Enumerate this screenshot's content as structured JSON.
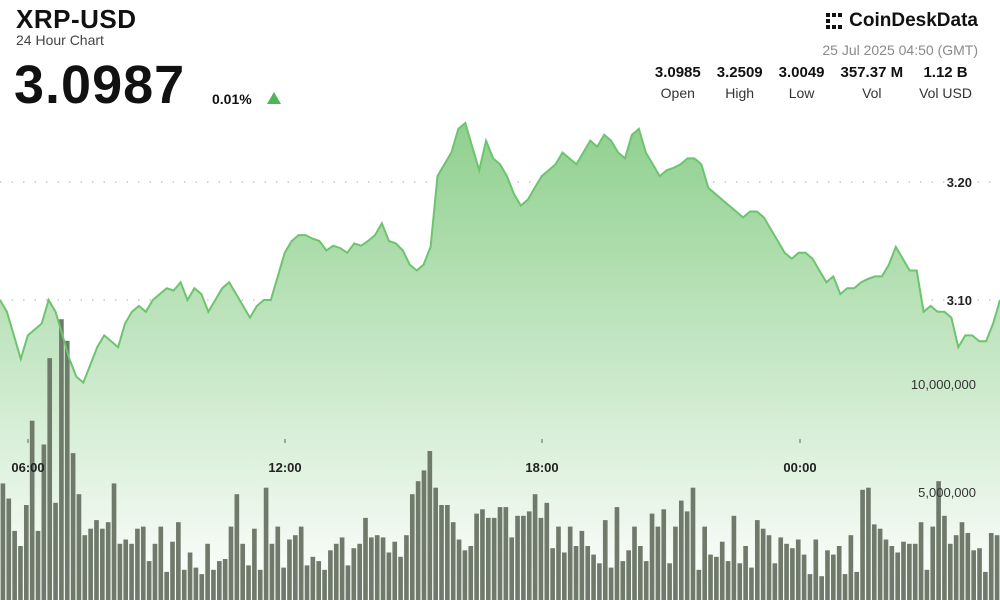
{
  "header": {
    "title": "XRP-USD",
    "subtitle": "24 Hour Chart",
    "price": "3.0987",
    "change": "0.01%",
    "brand": "CoinDeskData",
    "timestamp": "25 Jul 2025 04:50 (GMT)"
  },
  "stats": [
    {
      "value": "3.0985",
      "label": "Open"
    },
    {
      "value": "3.2509",
      "label": "High"
    },
    {
      "value": "3.0049",
      "label": "Low"
    },
    {
      "value": "357.37 M",
      "label": "Vol"
    },
    {
      "value": "1.12 B",
      "label": "Vol USD"
    }
  ],
  "colors": {
    "line": "#6cc46f",
    "fill_top": "#8fd08e",
    "fill_bottom": "#ffffff",
    "bar": "#6f7a6b",
    "up": "#4db65a"
  },
  "chart_data": {
    "type": "line",
    "title": "XRP-USD",
    "xlabel": "",
    "ylabel": "",
    "ylim": [
      3.025,
      3.25
    ],
    "y_ticks": [
      3.1,
      3.2
    ],
    "y_tick_labels": [
      "3.10",
      "3.20"
    ],
    "x_ticks": [
      {
        "pos": 0.028,
        "label": "06:00"
      },
      {
        "pos": 0.285,
        "label": "12:00"
      },
      {
        "pos": 0.542,
        "label": "18:00"
      },
      {
        "pos": 0.8,
        "label": "00:00"
      }
    ],
    "series": [
      {
        "values": [
          3.1,
          3.09,
          3.07,
          3.05,
          3.07,
          3.075,
          3.08,
          3.1,
          3.09,
          3.07,
          3.05,
          3.035,
          3.03,
          3.045,
          3.06,
          3.07,
          3.065,
          3.06,
          3.08,
          3.09,
          3.095,
          3.09,
          3.1,
          3.105,
          3.11,
          3.108,
          3.115,
          3.1,
          3.11,
          3.105,
          3.09,
          3.1,
          3.11,
          3.115,
          3.105,
          3.095,
          3.085,
          3.095,
          3.1,
          3.1,
          3.12,
          3.14,
          3.15,
          3.155,
          3.155,
          3.152,
          3.15,
          3.142,
          3.146,
          3.144,
          3.14,
          3.148,
          3.146,
          3.15,
          3.155,
          3.165,
          3.15,
          3.148,
          3.142,
          3.13,
          3.125,
          3.13,
          3.145,
          3.205,
          3.215,
          3.225,
          3.245,
          3.25,
          3.23,
          3.21,
          3.235,
          3.22,
          3.215,
          3.205,
          3.19,
          3.18,
          3.185,
          3.195,
          3.205,
          3.21,
          3.215,
          3.225,
          3.22,
          3.215,
          3.225,
          3.235,
          3.23,
          3.24,
          3.235,
          3.225,
          3.22,
          3.24,
          3.245,
          3.225,
          3.215,
          3.205,
          3.21,
          3.212,
          3.215,
          3.22,
          3.22,
          3.215,
          3.195,
          3.19,
          3.185,
          3.18,
          3.175,
          3.17,
          3.175,
          3.175,
          3.17,
          3.16,
          3.15,
          3.14,
          3.135,
          3.14,
          3.14,
          3.135,
          3.125,
          3.115,
          3.12,
          3.105,
          3.11,
          3.11,
          3.115,
          3.118,
          3.12,
          3.12,
          3.13,
          3.145,
          3.135,
          3.125,
          3.125,
          3.09,
          3.095,
          3.09,
          3.09,
          3.085,
          3.06,
          3.07,
          3.07,
          3.065,
          3.065,
          3.08,
          3.1
        ]
      }
    ],
    "volume": {
      "ylim": [
        0,
        15000000
      ],
      "y_ticks": [
        5000000,
        10000000
      ],
      "y_tick_labels": [
        "5,000,000",
        "10,000,000"
      ],
      "values": [
        5400000,
        4700000,
        3200000,
        2500000,
        4400000,
        8300000,
        3200000,
        7200000,
        11200000,
        4500000,
        13000000,
        12000000,
        6800000,
        4900000,
        3000000,
        3300000,
        3700000,
        3300000,
        3600000,
        5400000,
        2600000,
        2800000,
        2600000,
        3300000,
        3400000,
        1800000,
        2600000,
        3400000,
        1300000,
        2700000,
        3600000,
        1400000,
        2200000,
        1500000,
        1200000,
        2600000,
        1400000,
        1800000,
        1900000,
        3400000,
        4900000,
        2600000,
        1600000,
        3300000,
        1400000,
        5200000,
        2600000,
        3400000,
        1500000,
        2800000,
        3000000,
        3400000,
        1600000,
        2000000,
        1800000,
        1400000,
        2300000,
        2600000,
        2900000,
        1600000,
        2400000,
        2600000,
        3800000,
        2900000,
        3000000,
        2900000,
        2200000,
        2700000,
        2000000,
        3000000,
        4900000,
        5500000,
        6000000,
        6900000,
        5200000,
        4400000,
        4400000,
        3600000,
        2800000,
        2300000,
        2500000,
        4000000,
        4200000,
        3800000,
        3800000,
        4300000,
        4300000,
        2900000,
        3900000,
        3900000,
        4100000,
        4900000,
        3800000,
        4500000,
        2400000,
        3400000,
        2200000,
        3400000,
        2500000,
        3200000,
        2500000,
        2100000,
        1700000,
        3700000,
        1500000,
        4300000,
        1800000,
        2300000,
        3400000,
        2500000,
        1800000,
        4000000,
        3400000,
        4200000,
        1700000,
        3400000,
        4600000,
        4100000,
        5200000,
        1400000,
        3400000,
        2100000,
        2000000,
        2700000,
        1800000,
        3900000,
        1700000,
        2500000,
        1500000,
        3700000,
        3300000,
        3000000,
        1700000,
        2900000,
        2600000,
        2400000,
        2800000,
        2100000,
        1200000,
        2800000,
        1100000,
        2300000,
        2100000,
        2500000,
        1200000,
        3000000,
        1300000,
        5100000,
        5200000,
        3500000,
        3300000,
        2800000,
        2500000,
        2200000,
        2700000,
        2600000,
        2600000,
        3600000,
        1400000,
        3400000,
        5500000,
        3900000,
        2600000,
        3000000,
        3600000,
        3100000,
        2300000,
        2400000,
        1300000,
        3100000,
        3000000
      ]
    }
  }
}
